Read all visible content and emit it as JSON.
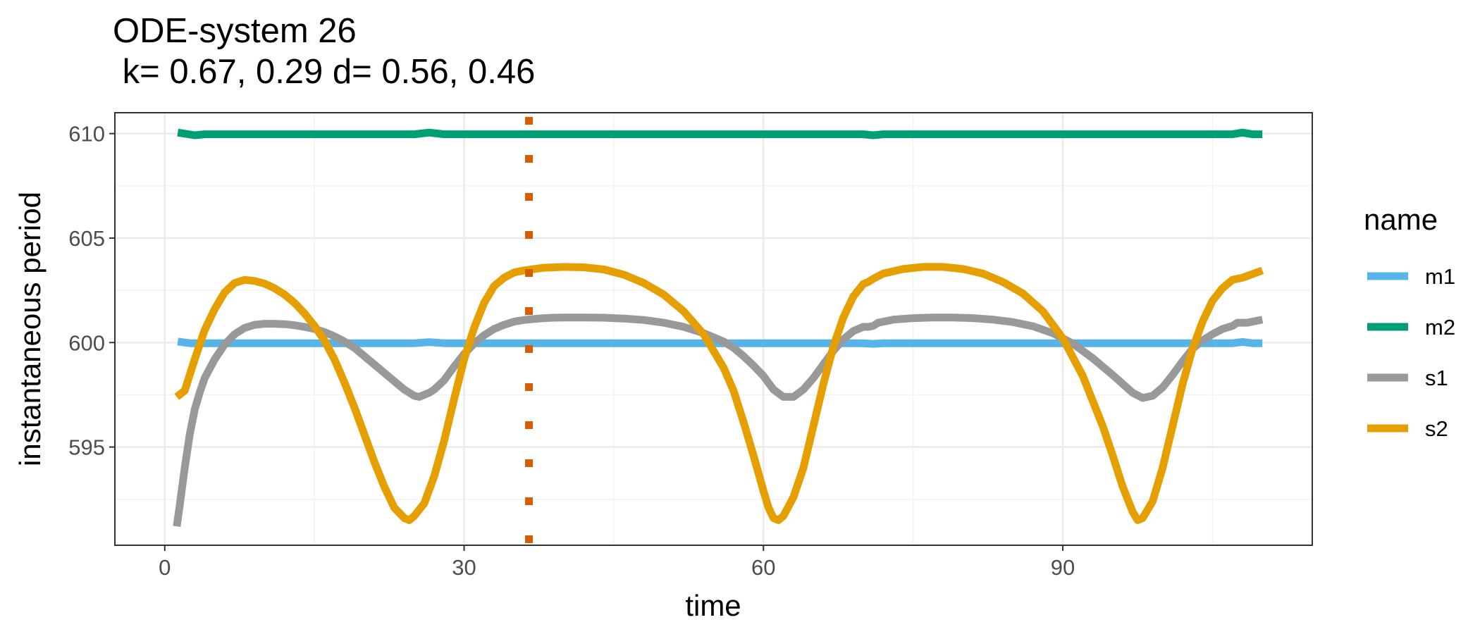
{
  "chart_data": {
    "type": "line",
    "title": "ODE-system 26",
    "subtitle": " k= 0.67, 0.29 d= 0.56, 0.46",
    "xlabel": "time",
    "ylabel": "instantaneous period",
    "xlim": [
      -5,
      115
    ],
    "ylim": [
      590.3,
      611.0
    ],
    "x_ticks": [
      0,
      30,
      60,
      90
    ],
    "y_ticks": [
      595,
      600,
      605,
      610
    ],
    "x_tick_labels": [
      "0",
      "30",
      "60",
      "90"
    ],
    "y_tick_labels": [
      "595",
      "600",
      "605",
      "610"
    ],
    "grid": true,
    "legend": {
      "title": "name",
      "position": "right"
    },
    "vline": {
      "x": 36.5,
      "color": "#D55E00",
      "style": "dotted"
    },
    "series": [
      {
        "name": "m1",
        "color": "#56B4E9",
        "points": [
          [
            1.3,
            600.05
          ],
          [
            2.5,
            599.97
          ],
          [
            25,
            599.97
          ],
          [
            26.5,
            600.02
          ],
          [
            28,
            599.97
          ],
          [
            70,
            599.97
          ],
          [
            71,
            599.94
          ],
          [
            72,
            599.97
          ],
          [
            107,
            599.97
          ],
          [
            108,
            600.03
          ],
          [
            109,
            599.97
          ],
          [
            110,
            599.97
          ]
        ]
      },
      {
        "name": "m2",
        "color": "#009E73",
        "points": [
          [
            1.3,
            610.05
          ],
          [
            3,
            609.92
          ],
          [
            4,
            609.97
          ],
          [
            25,
            609.97
          ],
          [
            26.5,
            610.05
          ],
          [
            28,
            609.97
          ],
          [
            70,
            609.97
          ],
          [
            71,
            609.92
          ],
          [
            72,
            609.97
          ],
          [
            107,
            609.97
          ],
          [
            108,
            610.05
          ],
          [
            109,
            609.97
          ],
          [
            110,
            609.97
          ]
        ]
      },
      {
        "name": "s1",
        "color": "#999999",
        "points": [
          [
            1.2,
            591.2
          ],
          [
            1.5,
            592.2
          ],
          [
            2,
            594.0
          ],
          [
            2.5,
            595.6
          ],
          [
            3,
            596.8
          ],
          [
            3.5,
            597.6
          ],
          [
            4,
            598.3
          ],
          [
            5,
            599.2
          ],
          [
            6,
            599.9
          ],
          [
            7,
            600.4
          ],
          [
            8,
            600.7
          ],
          [
            9,
            600.85
          ],
          [
            10,
            600.9
          ],
          [
            11,
            600.9
          ],
          [
            12,
            600.88
          ],
          [
            13,
            600.83
          ],
          [
            14,
            600.75
          ],
          [
            15,
            600.65
          ],
          [
            16,
            600.5
          ],
          [
            17,
            600.3
          ],
          [
            18,
            600.05
          ],
          [
            19,
            599.75
          ],
          [
            20,
            599.35
          ],
          [
            21,
            598.95
          ],
          [
            22,
            598.55
          ],
          [
            23,
            598.15
          ],
          [
            24,
            597.75
          ],
          [
            25,
            597.45
          ],
          [
            25.5,
            597.4
          ],
          [
            26,
            597.5
          ],
          [
            26.5,
            597.6
          ],
          [
            27,
            597.75
          ],
          [
            28,
            598.2
          ],
          [
            29,
            598.85
          ],
          [
            30,
            599.45
          ],
          [
            31,
            599.95
          ],
          [
            32,
            600.35
          ],
          [
            33,
            600.65
          ],
          [
            34,
            600.85
          ],
          [
            35,
            601.0
          ],
          [
            36,
            601.08
          ],
          [
            37,
            601.13
          ],
          [
            38,
            601.17
          ],
          [
            39,
            601.19
          ],
          [
            40,
            601.2
          ],
          [
            42,
            601.2
          ],
          [
            44,
            601.19
          ],
          [
            46,
            601.15
          ],
          [
            48,
            601.08
          ],
          [
            50,
            600.95
          ],
          [
            52,
            600.75
          ],
          [
            54,
            600.45
          ],
          [
            56,
            600.05
          ],
          [
            57,
            599.75
          ],
          [
            58,
            599.35
          ],
          [
            59,
            598.9
          ],
          [
            60,
            598.4
          ],
          [
            61,
            597.75
          ],
          [
            62,
            597.4
          ],
          [
            63,
            597.4
          ],
          [
            64,
            597.75
          ],
          [
            65,
            598.3
          ],
          [
            66,
            598.95
          ],
          [
            67,
            599.6
          ],
          [
            68,
            600.15
          ],
          [
            69,
            600.55
          ],
          [
            70,
            600.75
          ],
          [
            70.5,
            600.75
          ],
          [
            71,
            600.8
          ],
          [
            71.5,
            600.95
          ],
          [
            73,
            601.1
          ],
          [
            75,
            601.17
          ],
          [
            77,
            601.2
          ],
          [
            79,
            601.2
          ],
          [
            81,
            601.17
          ],
          [
            83,
            601.1
          ],
          [
            85,
            600.98
          ],
          [
            87,
            600.78
          ],
          [
            89,
            600.45
          ],
          [
            91,
            599.95
          ],
          [
            93,
            599.25
          ],
          [
            95,
            598.45
          ],
          [
            97,
            597.6
          ],
          [
            98,
            597.35
          ],
          [
            99,
            597.45
          ],
          [
            100,
            597.85
          ],
          [
            101,
            598.45
          ],
          [
            102,
            599.1
          ],
          [
            103,
            599.7
          ],
          [
            104,
            600.1
          ],
          [
            105,
            600.4
          ],
          [
            106,
            600.65
          ],
          [
            107,
            600.8
          ],
          [
            107.5,
            600.95
          ],
          [
            108.5,
            600.95
          ],
          [
            110,
            601.1
          ]
        ]
      },
      {
        "name": "s2",
        "color": "#E69F00",
        "points": [
          [
            1.2,
            597.4
          ],
          [
            2,
            597.7
          ],
          [
            3,
            599.2
          ],
          [
            4,
            600.6
          ],
          [
            5,
            601.6
          ],
          [
            6,
            602.4
          ],
          [
            7,
            602.85
          ],
          [
            8,
            603.0
          ],
          [
            9,
            602.95
          ],
          [
            10,
            602.82
          ],
          [
            11,
            602.6
          ],
          [
            12,
            602.3
          ],
          [
            13,
            601.9
          ],
          [
            14,
            601.4
          ],
          [
            15,
            600.8
          ],
          [
            16,
            600.1
          ],
          [
            17,
            599.2
          ],
          [
            18,
            598.1
          ],
          [
            19,
            596.9
          ],
          [
            20,
            595.6
          ],
          [
            21,
            594.3
          ],
          [
            22,
            593.1
          ],
          [
            23,
            592.1
          ],
          [
            24,
            591.6
          ],
          [
            24.5,
            591.5
          ],
          [
            25,
            591.7
          ],
          [
            26,
            592.3
          ],
          [
            27,
            593.6
          ],
          [
            28,
            595.3
          ],
          [
            29,
            597.3
          ],
          [
            30,
            599.2
          ],
          [
            31,
            600.7
          ],
          [
            32,
            601.9
          ],
          [
            33,
            602.7
          ],
          [
            34,
            603.1
          ],
          [
            35,
            603.35
          ],
          [
            36,
            603.45
          ],
          [
            37,
            603.52
          ],
          [
            38,
            603.58
          ],
          [
            40,
            603.62
          ],
          [
            42,
            603.6
          ],
          [
            44,
            603.5
          ],
          [
            46,
            603.25
          ],
          [
            48,
            602.85
          ],
          [
            50,
            602.3
          ],
          [
            52,
            601.5
          ],
          [
            54,
            600.4
          ],
          [
            56,
            598.8
          ],
          [
            57,
            597.7
          ],
          [
            58,
            596.2
          ],
          [
            59,
            594.6
          ],
          [
            60,
            592.9
          ],
          [
            60.5,
            592.1
          ],
          [
            61,
            591.6
          ],
          [
            61.5,
            591.5
          ],
          [
            62,
            591.7
          ],
          [
            63,
            592.6
          ],
          [
            64,
            594.0
          ],
          [
            65,
            596.0
          ],
          [
            66,
            598.0
          ],
          [
            67,
            599.8
          ],
          [
            68,
            601.2
          ],
          [
            69,
            602.2
          ],
          [
            70,
            602.8
          ],
          [
            70.5,
            602.9
          ],
          [
            71,
            603.05
          ],
          [
            72,
            603.3
          ],
          [
            74,
            603.52
          ],
          [
            76,
            603.62
          ],
          [
            78,
            603.62
          ],
          [
            80,
            603.52
          ],
          [
            82,
            603.3
          ],
          [
            84,
            602.9
          ],
          [
            86,
            602.35
          ],
          [
            88,
            601.5
          ],
          [
            90,
            600.2
          ],
          [
            92,
            598.4
          ],
          [
            94,
            596.0
          ],
          [
            95,
            594.6
          ],
          [
            96,
            593.1
          ],
          [
            97,
            591.9
          ],
          [
            97.5,
            591.5
          ],
          [
            98,
            591.6
          ],
          [
            99,
            592.4
          ],
          [
            100,
            594.0
          ],
          [
            101,
            596.0
          ],
          [
            102,
            598.0
          ],
          [
            103,
            599.7
          ],
          [
            104,
            601.0
          ],
          [
            105,
            602.0
          ],
          [
            106,
            602.6
          ],
          [
            107,
            603.0
          ],
          [
            108,
            603.1
          ],
          [
            110,
            603.45
          ]
        ]
      }
    ]
  }
}
